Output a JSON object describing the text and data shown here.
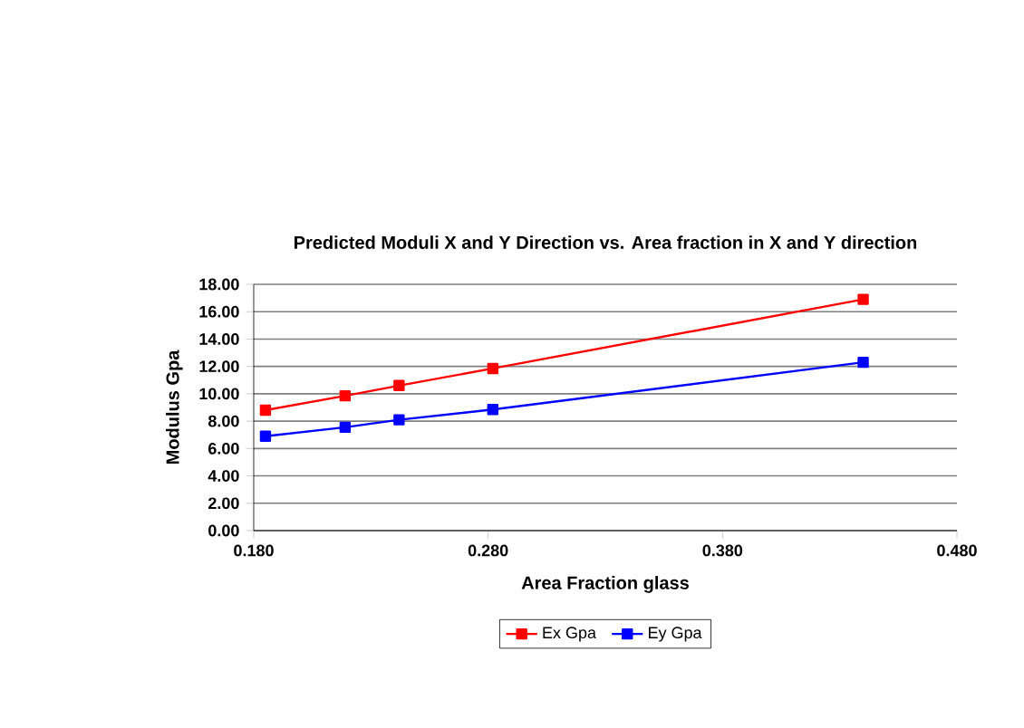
{
  "chart_data": {
    "type": "line",
    "title": "Predicted Moduli X and Y Direction vs. Area fraction in X and Y direction",
    "xlabel": "Area Fraction glass",
    "ylabel": "Modulus Gpa",
    "x": [
      0.185,
      0.219,
      0.242,
      0.282,
      0.44
    ],
    "series": [
      {
        "name": "Ex  Gpa",
        "color": "#ff0000",
        "values": [
          8.8,
          9.85,
          10.6,
          11.85,
          16.9
        ]
      },
      {
        "name": "Ey  Gpa",
        "color": "#0000ff",
        "values": [
          6.9,
          7.55,
          8.1,
          8.85,
          12.3
        ]
      }
    ],
    "xlim": [
      0.18,
      0.48
    ],
    "xticks": [
      {
        "value": 0.18,
        "label": "0.180"
      },
      {
        "value": 0.28,
        "label": "0.280"
      },
      {
        "value": 0.38,
        "label": "0.380"
      },
      {
        "value": 0.48,
        "label": "0.480"
      }
    ],
    "ylim": [
      0,
      18
    ],
    "yticks": [
      {
        "value": 0,
        "label": "0.00"
      },
      {
        "value": 2,
        "label": "2.00"
      },
      {
        "value": 4,
        "label": "4.00"
      },
      {
        "value": 6,
        "label": "6.00"
      },
      {
        "value": 8,
        "label": "8.00"
      },
      {
        "value": 10,
        "label": "10.00"
      },
      {
        "value": 12,
        "label": "12.00"
      },
      {
        "value": 14,
        "label": "14.00"
      },
      {
        "value": 16,
        "label": "16.00"
      },
      {
        "value": 18,
        "label": "18.00"
      }
    ],
    "grid": "y",
    "legend": "bottom",
    "marker": "square",
    "line_style": "solid"
  }
}
